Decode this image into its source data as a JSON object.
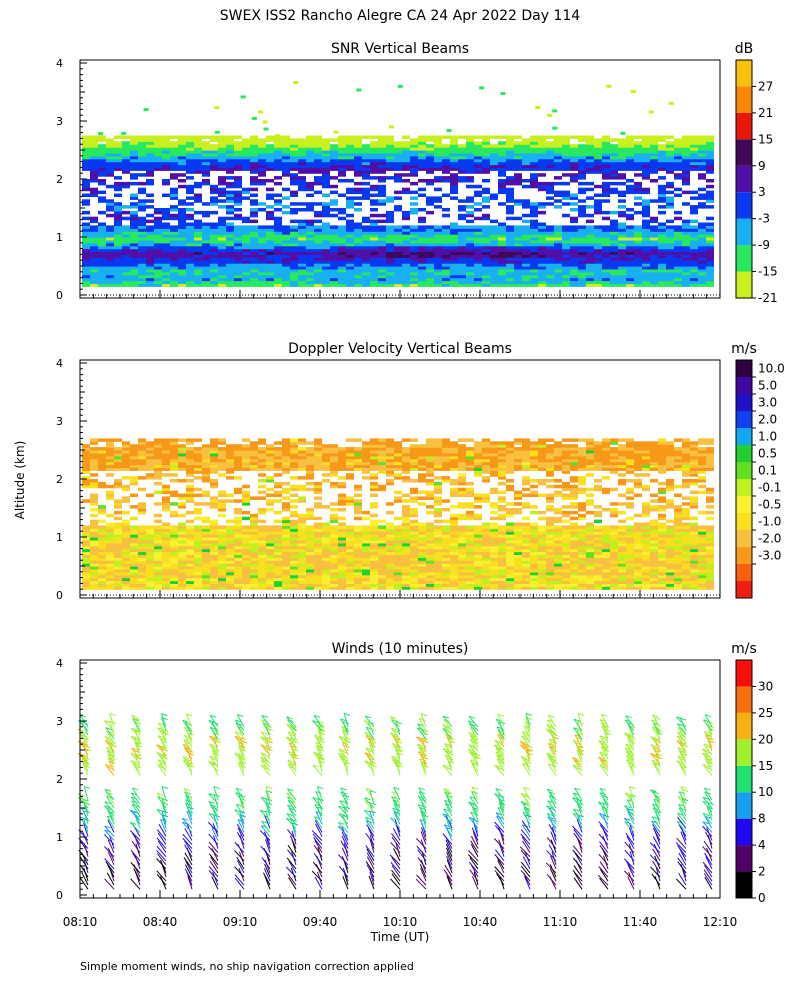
{
  "page_title": "SWEX ISS2 Rancho Alegre CA  24 Apr 2022 Day 114",
  "footnote": "Simple moment winds, no ship navigation correction applied",
  "y_axis_label": "Altitude (km)",
  "x_axis_label": "Time (UT)",
  "time_ticks": [
    "08:10",
    "08:40",
    "09:10",
    "09:40",
    "10:10",
    "10:40",
    "11:10",
    "11:40",
    "12:10"
  ],
  "colors": {
    "snr": [
      "#c8f01e",
      "#28e860",
      "#18b0f0",
      "#0838f0",
      "#5010a8",
      "#400858",
      "#e81808",
      "#f88808",
      "#f8c010"
    ],
    "doppler": [
      "#f02010",
      "#f86010",
      "#f89818",
      "#f8c040",
      "#f8e020",
      "#f8f030",
      "#c0f020",
      "#60e020",
      "#20d030",
      "#10a8f0",
      "#1040f0",
      "#2010c8",
      "#4008a0",
      "#300040"
    ],
    "wind": [
      "#000000",
      "#500068",
      "#2008f0",
      "#18a0f0",
      "#20e070",
      "#a0f030",
      "#f8b010",
      "#f87010",
      "#f81008"
    ]
  },
  "chart_data": [
    {
      "type": "heatmap",
      "title": "SNR Vertical Beams",
      "colorbar_unit": "dB",
      "colorbar_labels": [
        "-21",
        "-15",
        "-9",
        "-3",
        "3",
        "9",
        "15",
        "21",
        "27"
      ],
      "colorbar_bins": [
        -21,
        -15,
        -9,
        -3,
        3,
        9,
        15,
        21,
        27
      ],
      "ylim": [
        0,
        4
      ],
      "y_ticks": [
        "0",
        "1",
        "2",
        "3",
        "4"
      ],
      "xlim": [
        "08:10",
        "12:10"
      ],
      "profile_km": [
        {
          "z": 0.15,
          "snr": -12
        },
        {
          "z": 0.25,
          "snr": -6
        },
        {
          "z": 0.4,
          "snr": -8
        },
        {
          "z": 0.55,
          "snr": 1
        },
        {
          "z": 0.7,
          "snr": 6
        },
        {
          "z": 0.85,
          "snr": -6
        },
        {
          "z": 0.95,
          "snr": -12
        },
        {
          "z": 1.1,
          "snr": -4
        },
        {
          "z": 1.3,
          "snr": 2
        },
        {
          "z": 1.5,
          "snr": -2
        },
        {
          "z": 1.7,
          "snr": 0
        },
        {
          "z": 1.9,
          "snr": 2
        },
        {
          "z": 2.1,
          "snr": 4
        },
        {
          "z": 2.25,
          "snr": 0
        },
        {
          "z": 2.4,
          "snr": -9
        },
        {
          "z": 2.55,
          "snr": -15
        },
        {
          "z": 2.65,
          "snr": -20
        }
      ],
      "missing_band_km": [
        1.2,
        2.15
      ]
    },
    {
      "type": "heatmap",
      "title": "Doppler Velocity Vertical Beams",
      "colorbar_unit": "m/s",
      "colorbar_labels": [
        "-3.0",
        "-2.0",
        "-1.0",
        "-0.5",
        "-0.1",
        "0.1",
        "0.5",
        "1.0",
        "2.0",
        "3.0",
        "5.0",
        "10.0"
      ],
      "colorbar_bins": [
        -3.0,
        -2.0,
        -1.0,
        -0.5,
        -0.1,
        0.1,
        0.5,
        1.0,
        2.0,
        3.0,
        5.0,
        10.0
      ],
      "ylim": [
        0,
        4
      ],
      "y_ticks": [
        "0",
        "1",
        "2",
        "3",
        "4"
      ],
      "xlim": [
        "08:10",
        "12:10"
      ],
      "profile_km": [
        {
          "z": 0.2,
          "w": -0.3
        },
        {
          "z": 0.6,
          "w": -0.4
        },
        {
          "z": 1.0,
          "w": -0.2
        },
        {
          "z": 1.4,
          "w": -0.6
        },
        {
          "z": 1.8,
          "w": -0.8
        },
        {
          "z": 2.2,
          "w": -0.9
        },
        {
          "z": 2.5,
          "w": -1.1
        }
      ],
      "missing_band_km": [
        1.2,
        2.15
      ]
    },
    {
      "type": "scatter",
      "title": "Winds (10 minutes)",
      "colorbar_unit": "m/s",
      "colorbar_labels": [
        "0",
        "2",
        "4",
        "8",
        "10",
        "15",
        "20",
        "25",
        "30"
      ],
      "colorbar_bins": [
        0,
        2,
        4,
        8,
        10,
        15,
        20,
        25,
        30
      ],
      "ylim": [
        0,
        4
      ],
      "y_ticks": [
        "0",
        "1",
        "2",
        "3",
        "4"
      ],
      "xlim": [
        "08:10",
        "12:10"
      ],
      "profile_times": [
        "08:10",
        "08:20",
        "08:30",
        "08:40",
        "08:50",
        "09:00",
        "09:10",
        "09:20",
        "09:30",
        "09:40",
        "09:50",
        "10:00",
        "10:10",
        "10:20",
        "10:30",
        "10:40",
        "10:50",
        "11:00",
        "11:10",
        "11:20",
        "11:30",
        "11:40",
        "11:50",
        "12:00",
        "12:10"
      ],
      "speed_profile_km": [
        {
          "z": 0.1,
          "speed": 2
        },
        {
          "z": 0.5,
          "speed": 3
        },
        {
          "z": 0.9,
          "speed": 5
        },
        {
          "z": 1.3,
          "speed": 12
        },
        {
          "z": 1.6,
          "speed": 14
        },
        {
          "z": 2.1,
          "speed": 18
        },
        {
          "z": 2.5,
          "speed": 20
        },
        {
          "z": 2.8,
          "speed": 14
        }
      ],
      "data_gap_km": [
        1.7,
        2.0
      ]
    }
  ]
}
